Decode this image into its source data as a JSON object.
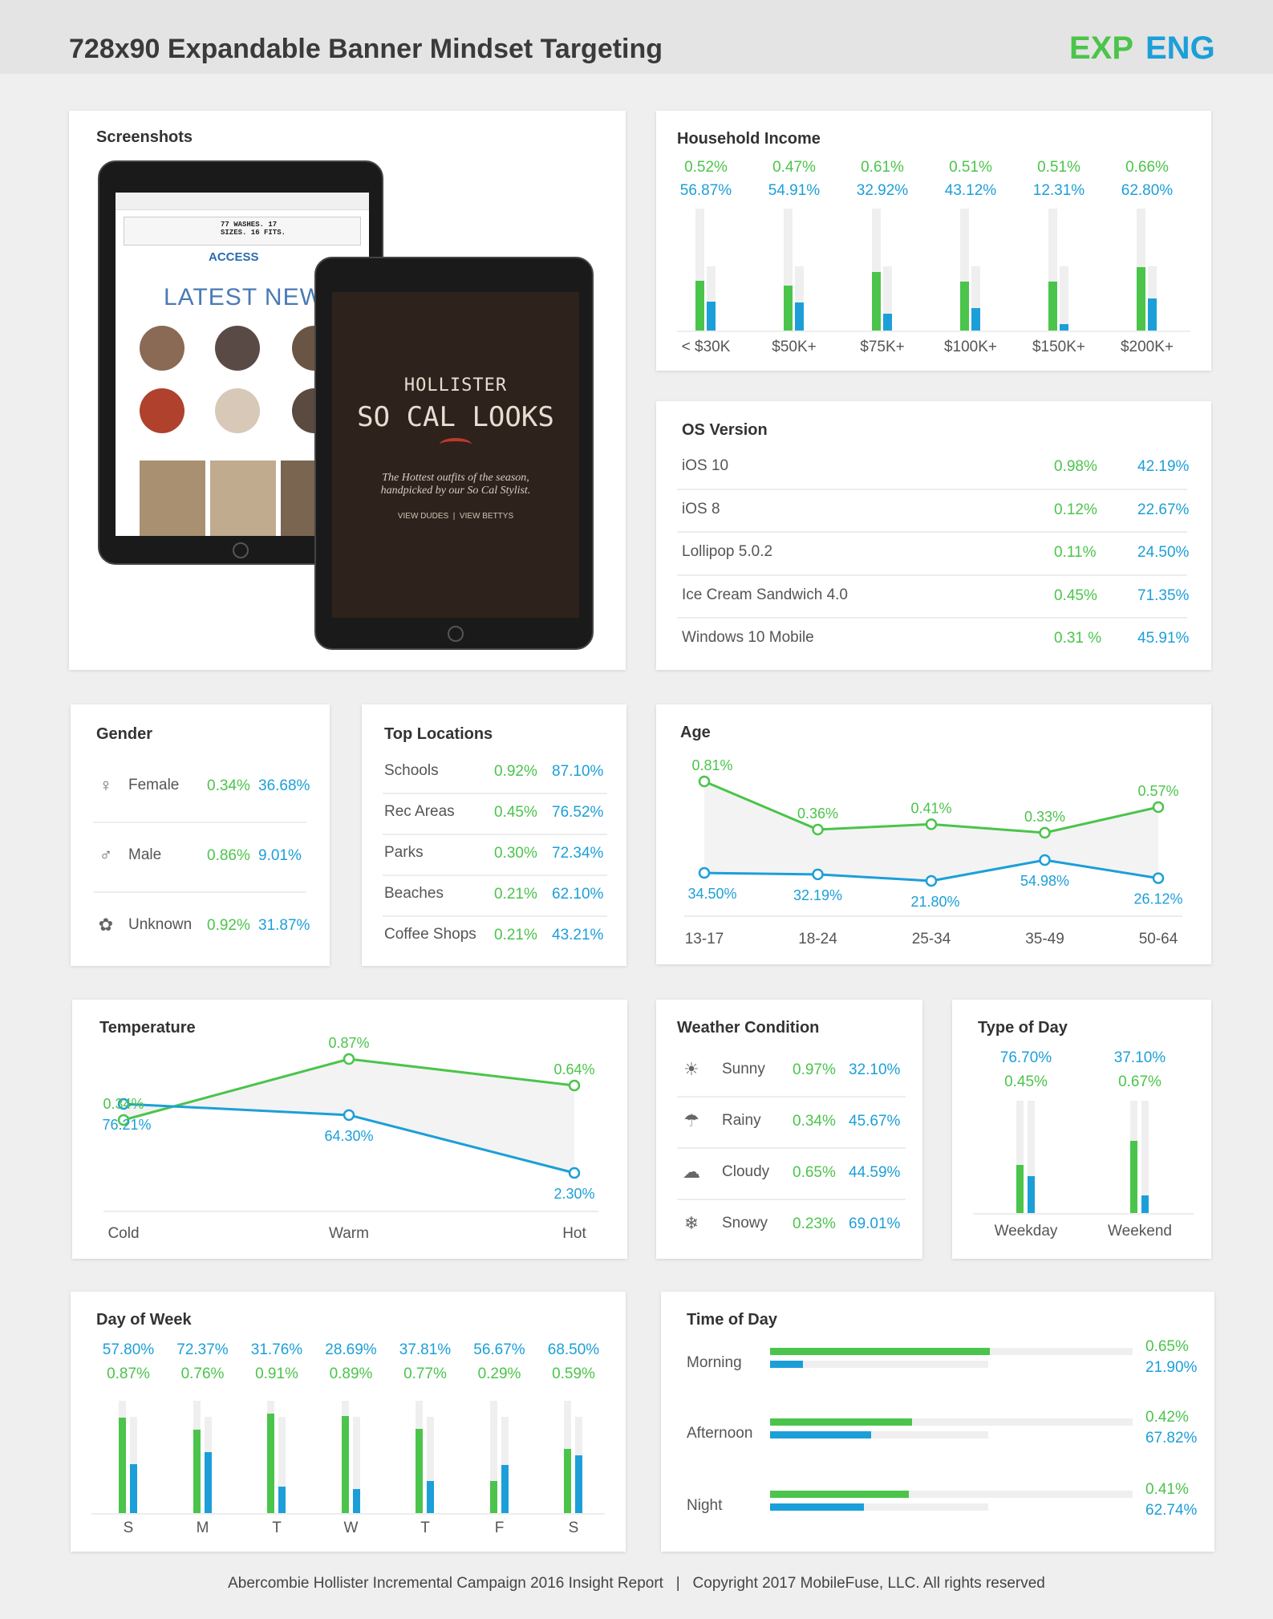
{
  "header": {
    "title": "728x90 Expandable Banner Mindset Targeting",
    "exp": "EXP",
    "eng": "ENG"
  },
  "colors": {
    "exp": "#4bc44b",
    "eng": "#1c9fd8"
  },
  "screenshots": {
    "title": "Screenshots",
    "ipad1": {
      "brand": "ACCESS",
      "headline": "LATEST NEWS",
      "promo": "77 WASHES. 17 SIZES. 16 FITS."
    },
    "ipad2": {
      "brand": "HOLLISTER",
      "headline": "SO CAL LOOKS",
      "tagline": "The Hottest outfits of the season, handpicked by our So Cal Stylist.",
      "links": "VIEW DUDES  |  VIEW BETTYS"
    }
  },
  "household": {
    "title": "Household Income",
    "items": [
      {
        "label": "< $30K",
        "exp": "0.52%",
        "eng": "56.87%"
      },
      {
        "label": "$50K+",
        "exp": "0.47%",
        "eng": "54.91%"
      },
      {
        "label": "$75K+",
        "exp": "0.61%",
        "eng": "32.92%"
      },
      {
        "label": "$100K+",
        "exp": "0.51%",
        "eng": "43.12%"
      },
      {
        "label": "$150K+",
        "exp": "0.51%",
        "eng": "12.31%"
      },
      {
        "label": "$200K+",
        "exp": "0.66%",
        "eng": "62.80%"
      }
    ]
  },
  "os": {
    "title": "OS Version",
    "items": [
      {
        "label": "iOS 10",
        "exp": "0.98%",
        "eng": "42.19%"
      },
      {
        "label": "iOS 8",
        "exp": "0.12%",
        "eng": "22.67%"
      },
      {
        "label": "Lollipop 5.0.2",
        "exp": "0.11%",
        "eng": "24.50%"
      },
      {
        "label": "Ice Cream Sandwich 4.0",
        "exp": "0.45%",
        "eng": "71.35%"
      },
      {
        "label": "Windows 10 Mobile",
        "exp": "0.31 %",
        "eng": "45.91%"
      }
    ]
  },
  "gender": {
    "title": "Gender",
    "items": [
      {
        "label": "Female",
        "icon": "female-icon",
        "exp": "0.34%",
        "eng": "36.68%"
      },
      {
        "label": "Male",
        "icon": "male-icon",
        "exp": "0.86%",
        "eng": "9.01%"
      },
      {
        "label": "Unknown",
        "icon": "unknown-icon",
        "exp": "0.92%",
        "eng": "31.87%"
      }
    ]
  },
  "locations": {
    "title": "Top Locations",
    "items": [
      {
        "label": "Schools",
        "exp": "0.92%",
        "eng": "87.10%"
      },
      {
        "label": "Rec Areas",
        "exp": "0.45%",
        "eng": "76.52%"
      },
      {
        "label": "Parks",
        "exp": "0.30%",
        "eng": "72.34%"
      },
      {
        "label": "Beaches",
        "exp": "0.21%",
        "eng": "62.10%"
      },
      {
        "label": "Coffee Shops",
        "exp": "0.21%",
        "eng": "43.21%"
      }
    ]
  },
  "weather": {
    "title": "Weather Condition",
    "items": [
      {
        "label": "Sunny",
        "icon": "sun-icon",
        "exp": "0.97%",
        "eng": "32.10%"
      },
      {
        "label": "Rainy",
        "icon": "rain-cloud-icon",
        "exp": "0.34%",
        "eng": "45.67%"
      },
      {
        "label": "Cloudy",
        "icon": "cloud-icon",
        "exp": "0.65%",
        "eng": "44.59%"
      },
      {
        "label": "Snowy",
        "icon": "snow-cloud-icon",
        "exp": "0.23%",
        "eng": "69.01%"
      }
    ]
  },
  "footer": {
    "text": "Abercombie Hollister Incremental Campaign 2016 Insight Report   |   Copyright 2017 MobileFuse, LLC. All rights reserved"
  },
  "chart_data": [
    {
      "id": "household",
      "type": "bar",
      "title": "Household Income",
      "categories": [
        "< $30K",
        "$50K+",
        "$75K+",
        "$100K+",
        "$150K+",
        "$200K+"
      ],
      "series": [
        {
          "values": [
            0.52,
            0.47,
            0.61,
            0.51,
            0.51,
            0.66
          ],
          "color": "#4bc44b"
        },
        {
          "values": [
            56.87,
            54.91,
            32.92,
            43.12,
            12.31,
            62.8
          ],
          "color": "#1c9fd8"
        }
      ]
    },
    {
      "id": "age",
      "type": "line",
      "title": "Age",
      "categories": [
        "13-17",
        "18-24",
        "25-34",
        "35-49",
        "50-64"
      ],
      "series": [
        {
          "values": [
            0.81,
            0.36,
            0.41,
            0.33,
            0.57
          ],
          "labels": [
            "0.81%",
            "0.36%",
            "0.41%",
            "0.33%",
            "0.57%"
          ],
          "color": "#4bc44b"
        },
        {
          "values": [
            34.5,
            32.19,
            21.8,
            54.98,
            26.12
          ],
          "labels": [
            "34.50%",
            "32.19%",
            "21.80%",
            "54.98%",
            "26.12%"
          ],
          "color": "#1c9fd8"
        }
      ]
    },
    {
      "id": "temperature",
      "type": "line",
      "title": "Temperature",
      "categories": [
        "Cold",
        "Warm",
        "Hot"
      ],
      "series": [
        {
          "values": [
            0.34,
            0.87,
            0.64
          ],
          "labels": [
            "0.34%",
            "0.87%",
            "0.64%"
          ],
          "color": "#4bc44b"
        },
        {
          "values": [
            76.21,
            64.3,
            2.3
          ],
          "labels": [
            "76.21%",
            "64.30%",
            "2.30%"
          ],
          "color": "#1c9fd8"
        }
      ]
    },
    {
      "id": "typeofday",
      "type": "bar",
      "title": "Type of Day",
      "categories": [
        "Weekday",
        "Weekend"
      ],
      "series": [
        {
          "values": [
            0.45,
            0.67
          ],
          "labels": [
            "0.45%",
            "0.67%"
          ],
          "color": "#4bc44b"
        },
        {
          "values": [
            76.7,
            37.1
          ],
          "labels": [
            "76.70%",
            "37.10%"
          ],
          "color": "#1c9fd8"
        }
      ]
    },
    {
      "id": "dayofweek",
      "type": "bar",
      "title": "Day of Week",
      "categories": [
        "S",
        "M",
        "T",
        "W",
        "T",
        "F",
        "S"
      ],
      "series": [
        {
          "values": [
            0.87,
            0.76,
            0.91,
            0.89,
            0.77,
            0.29,
            0.59
          ],
          "labels": [
            "0.87%",
            "0.76%",
            "0.91%",
            "0.89%",
            "0.77%",
            "0.29%",
            "0.59%"
          ],
          "color": "#4bc44b"
        },
        {
          "values": [
            57.8,
            72.37,
            31.76,
            28.69,
            37.81,
            56.67,
            68.5
          ],
          "labels": [
            "57.80%",
            "72.37%",
            "31.76%",
            "28.69%",
            "37.81%",
            "56.67%",
            "68.50%"
          ],
          "color": "#1c9fd8"
        }
      ]
    },
    {
      "id": "timeofday",
      "type": "bar",
      "title": "Time of Day",
      "categories": [
        "Morning",
        "Afternoon",
        "Night"
      ],
      "series": [
        {
          "values": [
            0.65,
            0.42,
            0.41
          ],
          "labels": [
            "0.65%",
            "0.42%",
            "0.41%"
          ],
          "color": "#4bc44b"
        },
        {
          "values": [
            21.9,
            67.82,
            62.74
          ],
          "labels": [
            "21.90%",
            "67.82%",
            "62.74%"
          ],
          "color": "#1c9fd8"
        }
      ]
    }
  ]
}
